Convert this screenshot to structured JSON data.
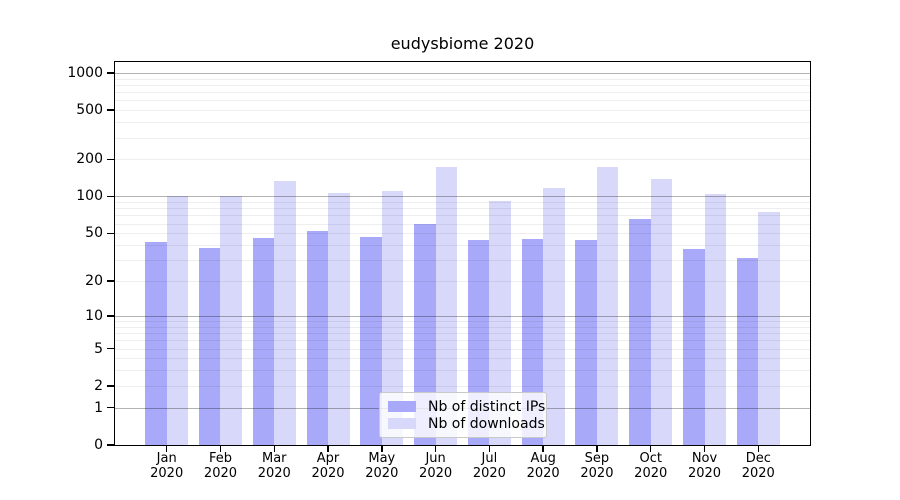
{
  "chart_data": {
    "type": "bar",
    "title": "eudysbiome 2020",
    "year": "2020",
    "categories": [
      "Jan",
      "Feb",
      "Mar",
      "Apr",
      "May",
      "Jun",
      "Jul",
      "Aug",
      "Sep",
      "Oct",
      "Nov",
      "Dec"
    ],
    "series": [
      {
        "name": "Nb of distinct IPs",
        "color": "#a9a9f9",
        "values": [
          42,
          38,
          46,
          52,
          47,
          60,
          44,
          45,
          44,
          65,
          37,
          31
        ]
      },
      {
        "name": "Nb of downloads",
        "color": "#d8d8fa",
        "values": [
          100,
          101,
          134,
          107,
          111,
          175,
          92,
          118,
          173,
          139,
          104,
          74
        ]
      }
    ],
    "xlabel": "",
    "ylabel": "",
    "yscale": "log10(value+1)",
    "ylim": [
      0,
      1230
    ],
    "yticks": [
      0,
      1,
      2,
      5,
      10,
      20,
      50,
      100,
      200,
      500,
      1000
    ],
    "major_gridlines": [
      1,
      10,
      100,
      1000
    ],
    "grid": true,
    "legend_position": "bottom-center"
  }
}
